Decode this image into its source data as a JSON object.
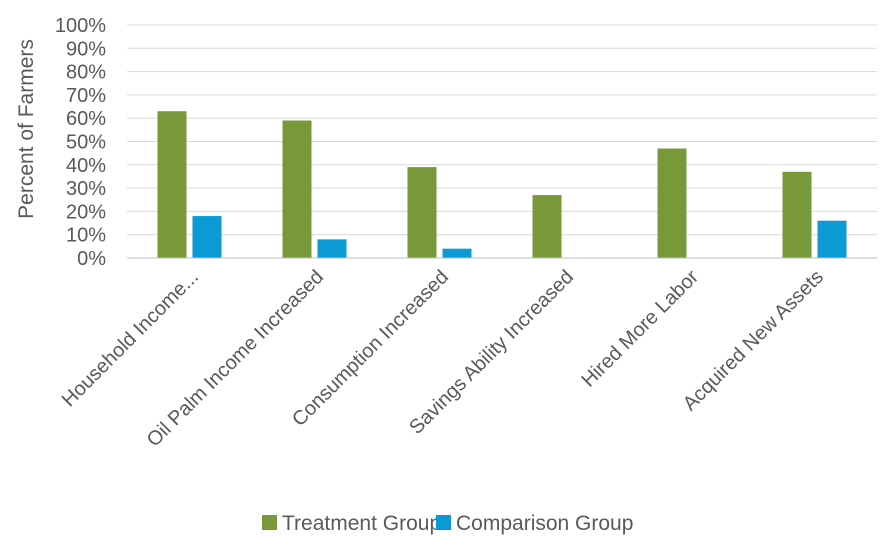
{
  "chart_data": {
    "type": "bar",
    "title": "",
    "xlabel": "",
    "ylabel": "Percent of Farmers",
    "ylim": [
      0,
      100
    ],
    "yticks": [
      "0%",
      "10%",
      "20%",
      "30%",
      "40%",
      "50%",
      "60%",
      "70%",
      "80%",
      "90%",
      "100%"
    ],
    "grid": true,
    "legend_position": "bottom",
    "categories": [
      "Household Income...",
      "Oil Palm Income Increased",
      "Consumption Increased",
      "Savings Ability Increased",
      "Hired More Labor",
      "Acquired New Assets"
    ],
    "series": [
      {
        "name": "Treatment Group",
        "color": "#77993a",
        "values": [
          63,
          59,
          39,
          27,
          47,
          37
        ]
      },
      {
        "name": "Comparison Group",
        "color": "#0b9ad3",
        "values": [
          18,
          8,
          4,
          0,
          0,
          16
        ]
      }
    ]
  }
}
